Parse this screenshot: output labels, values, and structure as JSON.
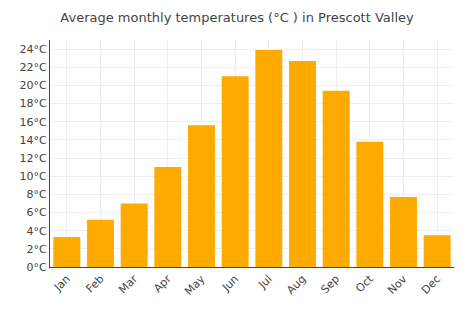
{
  "chart_data": {
    "type": "bar",
    "title": "Average monthly temperatures (°C ) in Prescott Valley",
    "categories": [
      "Jan",
      "Feb",
      "Mar",
      "Apr",
      "May",
      "Jun",
      "Jul",
      "Aug",
      "Sep",
      "Oct",
      "Nov",
      "Dec"
    ],
    "values": [
      3.3,
      5.2,
      7.0,
      11.0,
      15.6,
      21.0,
      23.9,
      22.7,
      19.4,
      13.8,
      7.7,
      3.5
    ],
    "color": "#FFAA00",
    "ylim": [
      0,
      25
    ],
    "yticks": [
      {
        "value": 0,
        "label": "0°C"
      },
      {
        "value": 2,
        "label": "2°C"
      },
      {
        "value": 4,
        "label": "4°C"
      },
      {
        "value": 6,
        "label": "6°C"
      },
      {
        "value": 8,
        "label": "8°C"
      },
      {
        "value": 10,
        "label": "10°C"
      },
      {
        "value": 12,
        "label": "12°C"
      },
      {
        "value": 14,
        "label": "14°C"
      },
      {
        "value": 16,
        "label": "16°C"
      },
      {
        "value": 18,
        "label": "18°C"
      },
      {
        "value": 20,
        "label": "20°C"
      },
      {
        "value": 22,
        "label": "22°C"
      },
      {
        "value": 24,
        "label": "24°C"
      }
    ],
    "grid": true
  }
}
